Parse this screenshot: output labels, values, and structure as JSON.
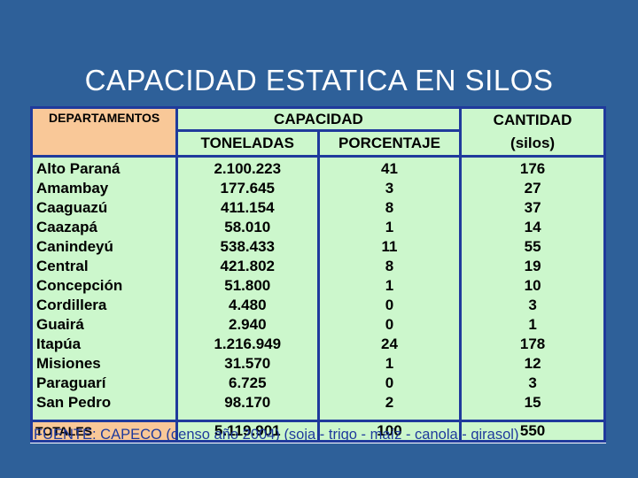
{
  "title": "CAPACIDAD ESTATICA EN SILOS",
  "table": {
    "headers": {
      "departamentos": "DEPARTAMENTOS",
      "capacidad": "CAPACIDAD",
      "toneladas": "TONELADAS",
      "porcentaje": "PORCENTAJE",
      "cantidad": "CANTIDAD",
      "silos": "(silos)"
    },
    "rows": [
      {
        "departamento": "Alto Paraná",
        "toneladas": "2.100.223",
        "porcentaje": "41",
        "cantidad": "176"
      },
      {
        "departamento": "Amambay",
        "toneladas": "177.645",
        "porcentaje": "3",
        "cantidad": "27"
      },
      {
        "departamento": "Caaguazú",
        "toneladas": "411.154",
        "porcentaje": "8",
        "cantidad": "37"
      },
      {
        "departamento": "Caazapá",
        "toneladas": "58.010",
        "porcentaje": "1",
        "cantidad": "14"
      },
      {
        "departamento": "Canindeyú",
        "toneladas": "538.433",
        "porcentaje": "11",
        "cantidad": "55"
      },
      {
        "departamento": "Central",
        "toneladas": "421.802",
        "porcentaje": "8",
        "cantidad": "19"
      },
      {
        "departamento": "Concepción",
        "toneladas": "51.800",
        "porcentaje": "1",
        "cantidad": "10"
      },
      {
        "departamento": "Cordillera",
        "toneladas": "4.480",
        "porcentaje": "0",
        "cantidad": "3"
      },
      {
        "departamento": "Guairá",
        "toneladas": "2.940",
        "porcentaje": "0",
        "cantidad": "1"
      },
      {
        "departamento": "Itapúa",
        "toneladas": "1.216.949",
        "porcentaje": "24",
        "cantidad": "178"
      },
      {
        "departamento": "Misiones",
        "toneladas": "31.570",
        "porcentaje": "1",
        "cantidad": "12"
      },
      {
        "departamento": "Paraguarí",
        "toneladas": "6.725",
        "porcentaje": "0",
        "cantidad": "3"
      },
      {
        "departamento": "San Pedro",
        "toneladas": "98.170",
        "porcentaje": "2",
        "cantidad": "15"
      }
    ],
    "totals": {
      "label": "TOTALES",
      "toneladas": "5.119.901",
      "porcentaje": "100",
      "cantidad": "550"
    }
  },
  "source": "FUENTE: CAPECO (censo año 2004) (soja - trigo - maíz - canola - girasol)",
  "colors": {
    "background": "#2e6099",
    "header_orange": "#f9c898",
    "cell_green": "#ccf7cc",
    "border_blue": "#1f3a9c"
  }
}
